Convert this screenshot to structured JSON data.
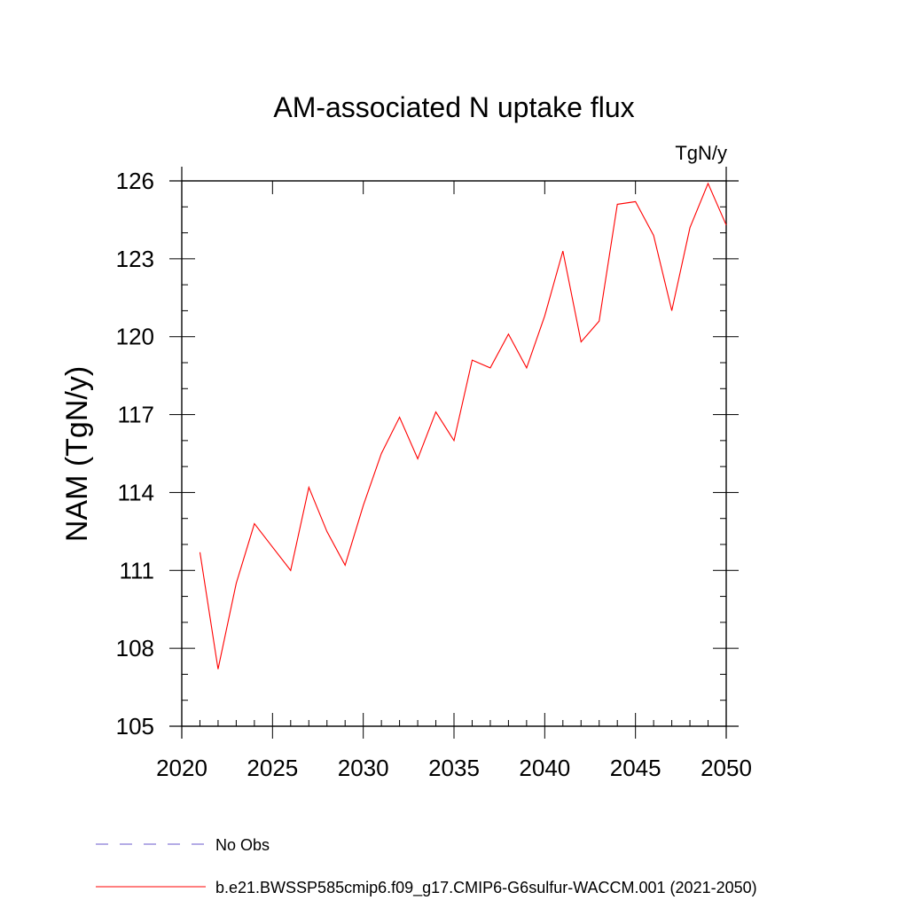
{
  "chart_data": {
    "type": "line",
    "title": "AM-associated N uptake flux",
    "units_label": "TgN/y",
    "ylabel": "NAM  (TgN/y)",
    "xlabel": "",
    "xlim": [
      2020,
      2050
    ],
    "ylim": [
      105,
      126.5
    ],
    "x_ticks": [
      2020,
      2025,
      2030,
      2035,
      2040,
      2045,
      2050
    ],
    "y_ticks": [
      105,
      108,
      111,
      114,
      117,
      120,
      123,
      126
    ],
    "grid": false,
    "legend_position": "bottom",
    "series": [
      {
        "name": "b.e21.BWSSP585cmip6.f09_g17.CMIP6-G6sulfur-WACCM.001 (2021-2050)",
        "color": "#ff0000",
        "style": "solid",
        "x": [
          2021,
          2022,
          2023,
          2024,
          2025,
          2026,
          2027,
          2028,
          2029,
          2030,
          2031,
          2032,
          2033,
          2034,
          2035,
          2036,
          2037,
          2038,
          2039,
          2040,
          2041,
          2042,
          2043,
          2044,
          2045,
          2046,
          2047,
          2048,
          2049,
          2050
        ],
        "values": [
          111.7,
          107.2,
          110.5,
          112.8,
          111.9,
          111.0,
          114.2,
          112.5,
          111.2,
          113.5,
          115.5,
          116.9,
          115.3,
          117.1,
          116.0,
          119.1,
          118.8,
          120.1,
          118.8,
          120.8,
          123.3,
          119.8,
          120.6,
          125.1,
          125.2,
          123.9,
          121.0,
          124.2,
          125.9,
          124.3
        ]
      },
      {
        "name": "No Obs",
        "color": "#6a5acd",
        "style": "dashed",
        "x": [],
        "values": []
      }
    ]
  }
}
